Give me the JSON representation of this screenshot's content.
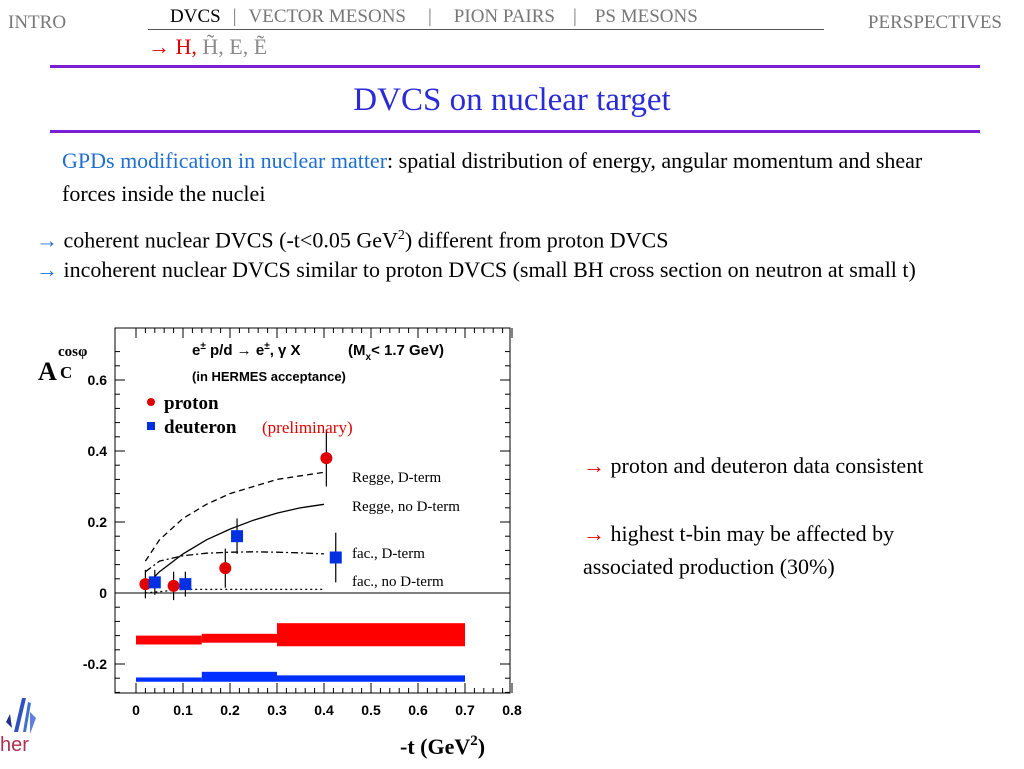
{
  "nav": {
    "left": "INTRO",
    "right": "PERSPECTIVES",
    "tabs": [
      "DVCS",
      "VECTOR MESONS",
      "PION PAIRS",
      "PS MESONS"
    ],
    "separator": "|",
    "sub": {
      "arrow": "→",
      "h": "H,",
      "htilde": "H̃,",
      "e": "E,",
      "etilde": "Ẽ"
    }
  },
  "slide": {
    "title": "DVCS on nuclear target",
    "intro_highlight": "GPDs modification in nuclear matter",
    "intro_rest": ": spatial distribution of energy, angular momentum and shear forces inside the nuclei",
    "b1_arrow": "→",
    "b1_text_a": " coherent nuclear DVCS (-t<0.05 GeV",
    "b1_sup": "2",
    "b1_text_b": ") different from proton DVCS",
    "b2_arrow": "→",
    "b2_text": " incoherent nuclear DVCS similar to proton DVCS (small BH cross  section on neutron at small t)",
    "r1_arrow": "→",
    "r1_text": " proton and deuteron data consistent",
    "r2_arrow": "→",
    "r2_text": " highest t-bin may be affected by associated production (30%)",
    "logo_text": "her"
  },
  "chart_data": {
    "type": "scatter",
    "ylabel_main": "A",
    "ylabel_sub": "C",
    "ylabel_sup": "cosφ",
    "xlabel_a": "-t (GeV",
    "xlabel_sup": "2",
    "xlabel_b": ")",
    "header_line1_a": "e",
    "header_line1_pm1": "±",
    "header_line1_b": " p/d → e",
    "header_line1_pm2": "±",
    "header_line1_c": ", γ X",
    "header_mx_a": "(M",
    "header_mx_sub": "x",
    "header_mx_b": "< 1.7 GeV)",
    "header_line2": "(in HERMES acceptance)",
    "preliminary": "(preliminary)",
    "xlim": [
      0,
      0.8
    ],
    "ylim": [
      -0.3,
      0.75
    ],
    "xticks": [
      0,
      0.1,
      0.2,
      0.3,
      0.4,
      0.5,
      0.6,
      0.7,
      0.8
    ],
    "xtick_labels": [
      "0",
      "0.1",
      "0.2",
      "0.3",
      "0.4",
      "0.5",
      "0.6",
      "0.7",
      "0.8"
    ],
    "yticks": [
      -0.2,
      0,
      0.2,
      0.4,
      0.6
    ],
    "ytick_labels": [
      "-0.2",
      "0",
      "0.2",
      "0.4",
      "0.6"
    ],
    "series": [
      {
        "name": "proton",
        "color": "#e00000",
        "marker": "circle",
        "x": [
          0.02,
          0.08,
          0.19,
          0.405
        ],
        "y": [
          0.025,
          0.02,
          0.07,
          0.38
        ],
        "yerr": [
          0.04,
          0.04,
          0.055,
          0.08
        ]
      },
      {
        "name": "deuteron",
        "color": "#0030e0",
        "marker": "square",
        "x": [
          0.04,
          0.105,
          0.215,
          0.425
        ],
        "y": [
          0.03,
          0.025,
          0.16,
          0.1
        ],
        "yerr": [
          0.035,
          0.035,
          0.05,
          0.07
        ]
      }
    ],
    "curves": [
      {
        "name": "Regge, D-term",
        "style": "dashed",
        "x": [
          0.02,
          0.05,
          0.1,
          0.15,
          0.2,
          0.25,
          0.3,
          0.35,
          0.4
        ],
        "y": [
          0.09,
          0.15,
          0.21,
          0.25,
          0.28,
          0.3,
          0.32,
          0.33,
          0.34
        ]
      },
      {
        "name": "Regge, no D-term",
        "style": "solid",
        "x": [
          0.02,
          0.05,
          0.1,
          0.15,
          0.2,
          0.25,
          0.3,
          0.35,
          0.4
        ],
        "y": [
          0.02,
          0.06,
          0.11,
          0.15,
          0.18,
          0.205,
          0.225,
          0.24,
          0.25
        ]
      },
      {
        "name": "fac., D-term",
        "style": "dashdot",
        "x": [
          0.02,
          0.05,
          0.1,
          0.15,
          0.2,
          0.25,
          0.3,
          0.35,
          0.4
        ],
        "y": [
          0.06,
          0.09,
          0.105,
          0.112,
          0.115,
          0.116,
          0.115,
          0.113,
          0.11
        ]
      },
      {
        "name": "fac., no D-term",
        "style": "dotted",
        "x": [
          0.02,
          0.1,
          0.2,
          0.3,
          0.4
        ],
        "y": [
          0.0,
          0.01,
          0.01,
          0.01,
          0.01
        ]
      }
    ],
    "systematic_bands": [
      {
        "color": "#ff0000",
        "segments": [
          {
            "x0": 0.0,
            "x1": 0.14,
            "y0": -0.145,
            "y1": -0.12
          },
          {
            "x0": 0.14,
            "x1": 0.3,
            "y0": -0.14,
            "y1": -0.115
          },
          {
            "x0": 0.3,
            "x1": 0.7,
            "y0": -0.15,
            "y1": -0.085
          }
        ]
      },
      {
        "color": "#0030ff",
        "segments": [
          {
            "x0": 0.0,
            "x1": 0.14,
            "y0": -0.25,
            "y1": -0.238
          },
          {
            "x0": 0.14,
            "x1": 0.3,
            "y0": -0.25,
            "y1": -0.222
          },
          {
            "x0": 0.3,
            "x1": 0.7,
            "y0": -0.25,
            "y1": -0.232
          }
        ]
      }
    ]
  }
}
